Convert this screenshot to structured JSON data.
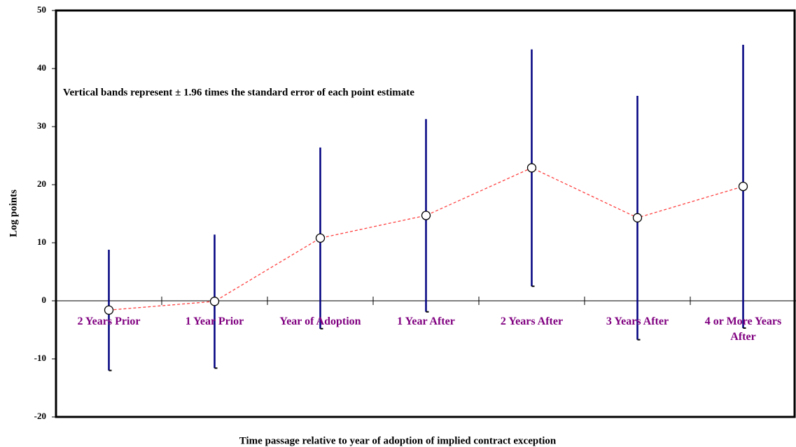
{
  "chart_data": {
    "type": "errorbar",
    "annotation": "Vertical bands represent ± 1.96 times the standard error of each point estimate",
    "x_label": "Time passage relative to year of adoption of implied contract exception",
    "y_label": "Log points",
    "categories": [
      "2 Years Prior",
      "1 Year Prior",
      "Year of Adoption",
      "1 Year After",
      "2 Years After",
      "3 Years After",
      "4 or More Years After"
    ],
    "category_label_color": "#800080",
    "series": [
      {
        "color": "#ff4040",
        "error_color": "#000080",
        "values": [
          -1.6,
          -0.1,
          10.8,
          14.7,
          22.9,
          14.3,
          19.7
        ],
        "errors": [
          10.4,
          11.5,
          15.6,
          16.6,
          20.4,
          21.0,
          24.4
        ]
      }
    ],
    "ylim": [
      -20,
      50
    ],
    "yticks": [
      -20,
      -10,
      0,
      10,
      20,
      30,
      40,
      50
    ]
  }
}
